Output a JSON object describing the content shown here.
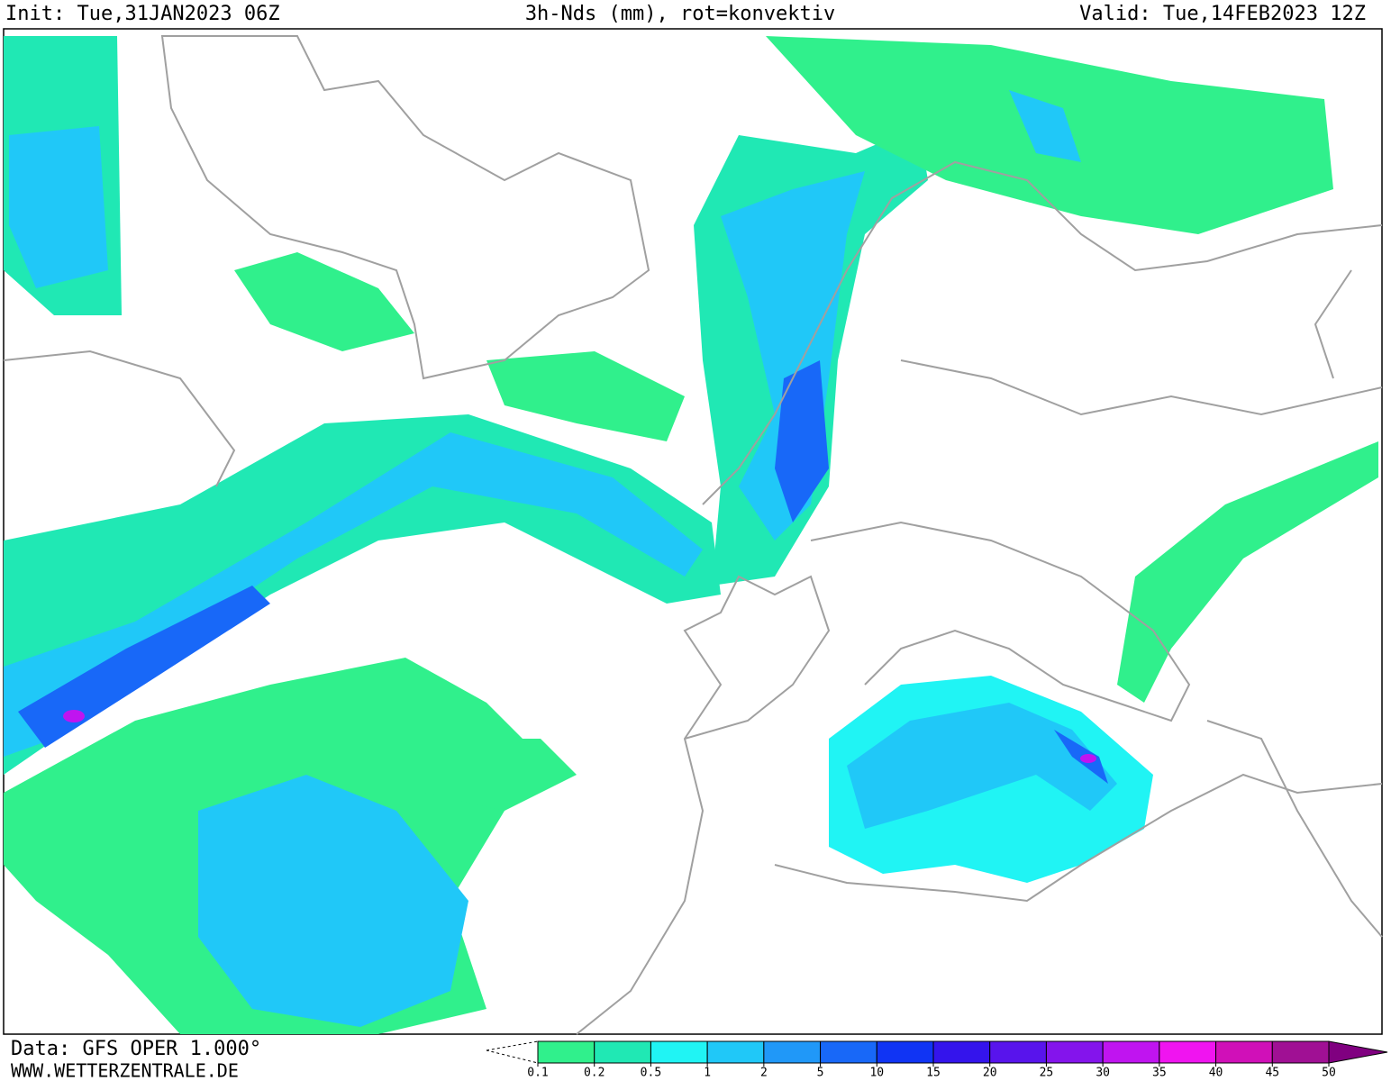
{
  "header": {
    "init": "Init: Tue,31JAN2023 06Z",
    "title": "3h-Nds (mm), rot=konvektiv",
    "valid": "Valid: Tue,14FEB2023 12Z"
  },
  "footer": {
    "source": "Data: GFS OPER 1.000°",
    "site": "WWW.WETTERZENTRALE.DE"
  },
  "legend": {
    "ticks": [
      0.1,
      0.2,
      0.5,
      1,
      2,
      5,
      10,
      15,
      20,
      25,
      30,
      35,
      40,
      45,
      50
    ],
    "colors": [
      "#30f08c",
      "#20e8b4",
      "#20f4f4",
      "#20c8f8",
      "#2098f8",
      "#1868f8",
      "#1034f4",
      "#3414ec",
      "#5814ec",
      "#8414ec",
      "#c014f0",
      "#f014f0",
      "#d010b8",
      "#a01094"
    ],
    "arrow_color": "#800080"
  }
}
